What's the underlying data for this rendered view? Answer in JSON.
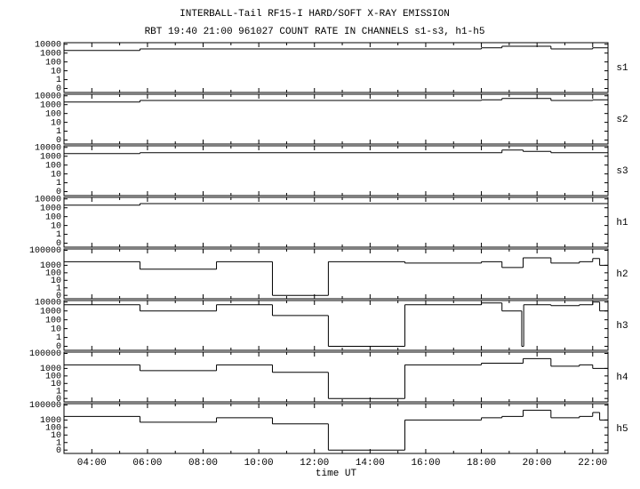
{
  "chart_data": {
    "type": "step",
    "title": "INTERBALL-Tail RF15-I HARD/SOFT X-RAY EMISSION",
    "subtitle": "RBT 19:40 21:00 961027  COUNT RATE IN CHANNELS s1-s3, h1-h5",
    "xlabel": "time UT",
    "xlim": [
      3.0,
      22.55
    ],
    "xticks": [
      {
        "value": 4,
        "label": "04:00"
      },
      {
        "value": 6,
        "label": "06:00"
      },
      {
        "value": 8,
        "label": "08:00"
      },
      {
        "value": 10,
        "label": "10:00"
      },
      {
        "value": 12,
        "label": "12:00"
      },
      {
        "value": 14,
        "label": "14:00"
      },
      {
        "value": 16,
        "label": "16:00"
      },
      {
        "value": 18,
        "label": "18:00"
      },
      {
        "value": 20,
        "label": "20:00"
      },
      {
        "value": 22,
        "label": "22:00"
      }
    ],
    "log_scale": true,
    "color": "#000000",
    "panels": [
      {
        "name": "s1",
        "ylim": [
          0,
          15000
        ],
        "yticks": [
          10000,
          1000,
          100,
          10,
          1,
          0
        ],
        "x": [
          3.0,
          5.73,
          18.0,
          18.74,
          20.5,
          22.0
        ],
        "values": [
          2000,
          3000,
          4000,
          6000,
          3000,
          4000
        ]
      },
      {
        "name": "s2",
        "ylim": [
          0,
          15000
        ],
        "yticks": [
          10000,
          1000,
          100,
          10,
          1,
          0
        ],
        "x": [
          3.0,
          5.73,
          18.0,
          18.74,
          20.5,
          22.0
        ],
        "values": [
          2000,
          3000,
          3500,
          5000,
          3000,
          3500
        ]
      },
      {
        "name": "s3",
        "ylim": [
          0,
          15000
        ],
        "yticks": [
          10000,
          1000,
          100,
          10,
          1,
          0
        ],
        "x": [
          3.0,
          5.73,
          18.74,
          19.5,
          20.5
        ],
        "values": [
          2000,
          2500,
          5000,
          3500,
          2500
        ]
      },
      {
        "name": "h1",
        "ylim": [
          0,
          15000
        ],
        "yticks": [
          10000,
          1000,
          100,
          10,
          1,
          0
        ],
        "x": [
          3.0,
          5.73
        ],
        "values": [
          2000,
          3000
        ]
      },
      {
        "name": "h2",
        "ylim": [
          0,
          150000
        ],
        "yticks": [
          100000,
          1000,
          100,
          10,
          1,
          0
        ],
        "x": [
          3.0,
          5.73,
          8.48,
          10.49,
          12.5,
          15.25,
          18.0,
          18.74,
          19.5,
          20.5,
          21.52,
          22.0,
          22.25
        ],
        "values": [
          3000,
          300,
          3000,
          0,
          3000,
          2000,
          3000,
          500,
          10000,
          2000,
          3000,
          8000,
          1000
        ]
      },
      {
        "name": "h3",
        "ylim": [
          0,
          15000
        ],
        "yticks": [
          10000,
          1000,
          100,
          10,
          1,
          0
        ],
        "x": [
          3.0,
          5.73,
          8.48,
          10.49,
          12.5,
          15.25,
          18.0,
          18.74,
          19.45,
          19.52,
          20.5,
          21.52,
          22.0,
          22.25
        ],
        "values": [
          5000,
          1000,
          5000,
          300,
          0,
          5000,
          8000,
          1000,
          0,
          5000,
          4000,
          5000,
          10000,
          1000
        ]
      },
      {
        "name": "h4",
        "ylim": [
          0,
          150000
        ],
        "yticks": [
          100000,
          1000,
          100,
          10,
          1,
          0
        ],
        "x": [
          3.0,
          5.73,
          8.48,
          10.49,
          12.5,
          15.25,
          18.0,
          19.5,
          20.5,
          21.52,
          22.0
        ],
        "values": [
          3000,
          500,
          3000,
          300,
          0,
          3000,
          5000,
          20000,
          2000,
          3000,
          1000
        ]
      },
      {
        "name": "h5",
        "ylim": [
          0,
          150000
        ],
        "yticks": [
          100000,
          1000,
          100,
          10,
          1,
          0
        ],
        "x": [
          3.0,
          5.73,
          8.48,
          10.49,
          12.5,
          15.25,
          18.0,
          18.74,
          19.5,
          20.5,
          21.52,
          22.0,
          22.25
        ],
        "values": [
          3000,
          500,
          2000,
          300,
          0,
          1000,
          2000,
          3000,
          20000,
          2000,
          3000,
          10000,
          1000
        ]
      }
    ]
  }
}
